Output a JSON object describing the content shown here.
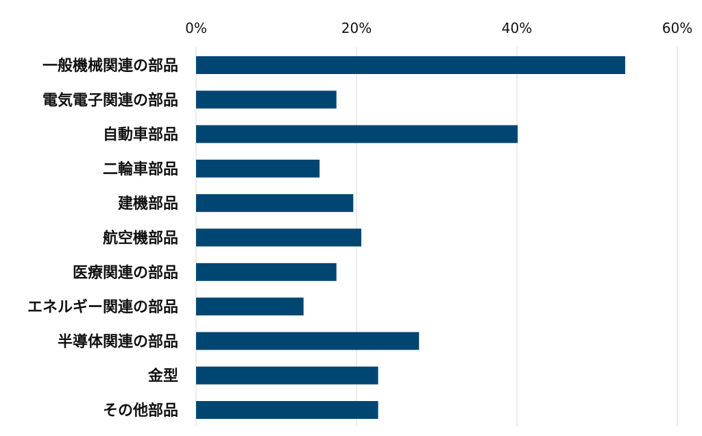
{
  "chart_data": {
    "type": "bar",
    "orientation": "horizontal",
    "x_axis_position": "top",
    "title": "",
    "xlabel": "",
    "ylabel": "",
    "xlim": [
      0,
      60
    ],
    "x_ticks": [
      0,
      20,
      40,
      60
    ],
    "tick_labels": [
      "0%",
      "20%",
      "40%",
      "60%"
    ],
    "grid": true,
    "legend": "none",
    "categories": [
      "一般機械関連の部品",
      "電気電子関連の部品",
      "自動車部品",
      "二輪車部品",
      "建機部品",
      "航空機部品",
      "医療関連の部品",
      "エネルギー関連の部品",
      "半導体関連の部品",
      "金型",
      "その他部品"
    ],
    "values": [
      53.5,
      17.5,
      40.1,
      15.4,
      19.6,
      20.6,
      17.5,
      13.4,
      27.8,
      22.7,
      22.7
    ],
    "colors": {
      "bar": "#004672",
      "grid": "#d9d9d9",
      "text": "#111111"
    }
  }
}
